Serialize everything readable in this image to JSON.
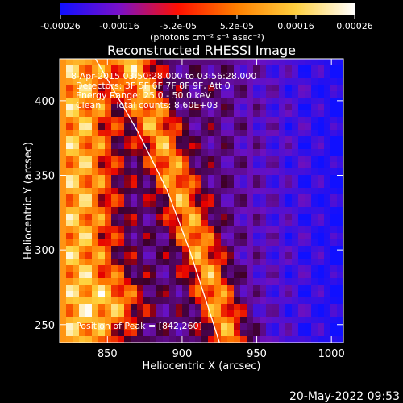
{
  "chart_data": {
    "type": "heatmap",
    "title": "Reconstructed RHESSI Image",
    "xlabel": "Heliocentric X (arcsec)",
    "ylabel": "Heliocentric Y (arcsec)",
    "xlim": [
      818,
      1008
    ],
    "ylim": [
      238,
      428
    ],
    "x_ticks": [
      850,
      900,
      950,
      1000
    ],
    "y_ticks": [
      250,
      300,
      350,
      400
    ],
    "colorbar": {
      "label": "(photons cm⁻² s⁻¹ asec⁻²)",
      "range": [
        -0.00026,
        0.00026
      ],
      "tick_labels": [
        "-0.00026",
        "-0.00016",
        "-5.2e-05",
        "5.2e-05",
        "0.00016",
        "0.00026"
      ],
      "colormap": [
        "#1010ff",
        "#7a10c8",
        "#ff1000",
        "#ff8000",
        "#ffd040",
        "#ffffff"
      ]
    },
    "annotations": [
      "8-Apr-2015 03:50:28.000 to 03:56:28.000",
      "Detectors: 3F 5F 6F 7F 8F 9F, Att 0",
      "Energy Range: 25.0 - 50.0 keV",
      "Clean     Total counts: 8.60E+03",
      "Position of Peak = [842,260]"
    ],
    "peak": {
      "x": 842,
      "y": 260
    },
    "limb_curve": [
      [
        842,
        428
      ],
      [
        870,
        380
      ],
      [
        890,
        340
      ],
      [
        905,
        300
      ],
      [
        918,
        260
      ],
      [
        925,
        238
      ]
    ],
    "footer_date": "20-May-2022 09:53"
  }
}
